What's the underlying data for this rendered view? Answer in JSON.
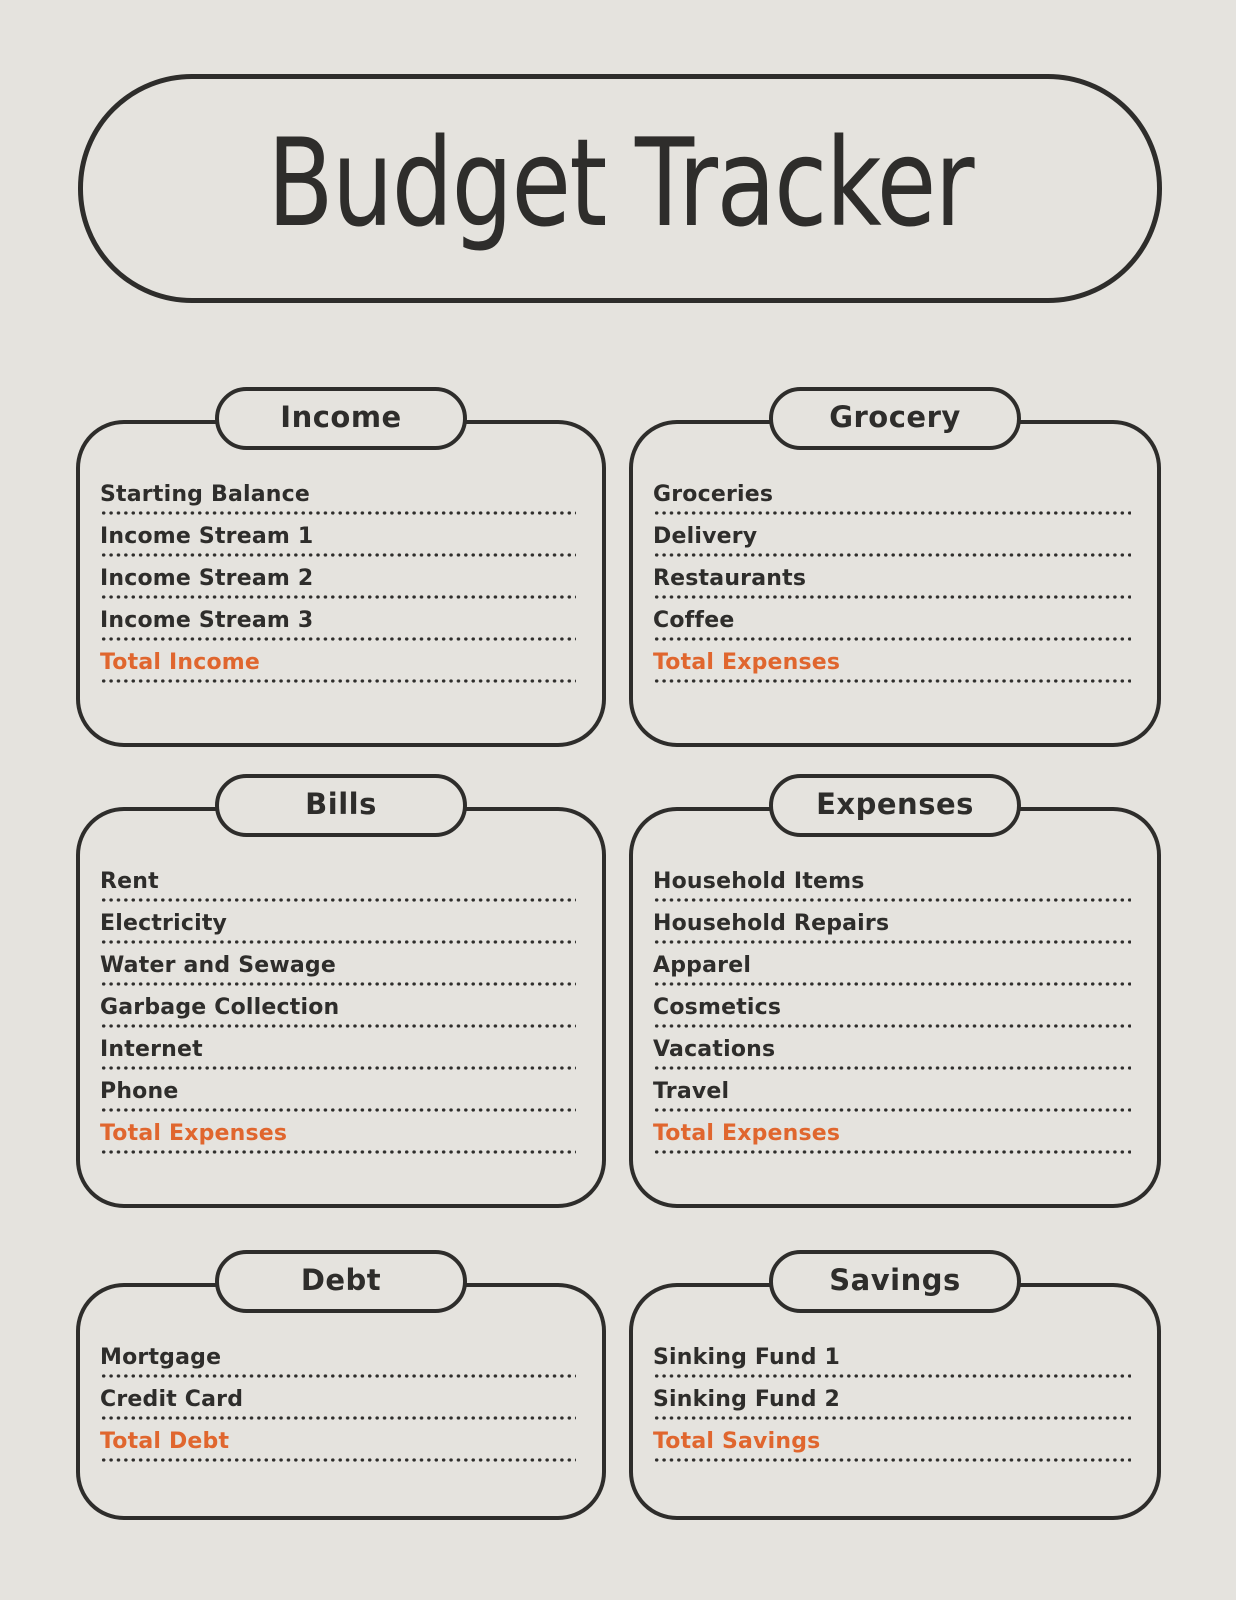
{
  "page": {
    "title": "Budget Tracker"
  },
  "colors": {
    "background": "#E5E3DE",
    "ink": "#2E2D2B",
    "accent": "#E0662E"
  },
  "sections": [
    {
      "id": "income",
      "title": "Income",
      "items": [
        {
          "label": "Starting Balance",
          "value": "",
          "emphasis": false
        },
        {
          "label": "Income Stream 1",
          "value": "",
          "emphasis": false
        },
        {
          "label": "Income Stream 2",
          "value": "",
          "emphasis": false
        },
        {
          "label": "Income Stream 3",
          "value": "",
          "emphasis": false
        },
        {
          "label": "Total Income",
          "value": "",
          "emphasis": true
        }
      ]
    },
    {
      "id": "grocery",
      "title": "Grocery",
      "items": [
        {
          "label": "Groceries",
          "value": "",
          "emphasis": false
        },
        {
          "label": "Delivery",
          "value": "",
          "emphasis": false
        },
        {
          "label": "Restaurants",
          "value": "",
          "emphasis": false
        },
        {
          "label": "Coffee",
          "value": "",
          "emphasis": false
        },
        {
          "label": "Total Expenses",
          "value": "",
          "emphasis": true
        }
      ]
    },
    {
      "id": "bills",
      "title": "Bills",
      "items": [
        {
          "label": "Rent",
          "value": "",
          "emphasis": false
        },
        {
          "label": "Electricity",
          "value": "",
          "emphasis": false
        },
        {
          "label": "Water and Sewage",
          "value": "",
          "emphasis": false
        },
        {
          "label": "Garbage Collection",
          "value": "",
          "emphasis": false
        },
        {
          "label": "Internet",
          "value": "",
          "emphasis": false
        },
        {
          "label": "Phone",
          "value": "",
          "emphasis": false
        },
        {
          "label": "Total Expenses",
          "value": "",
          "emphasis": true
        }
      ]
    },
    {
      "id": "expenses",
      "title": "Expenses",
      "items": [
        {
          "label": "Household Items",
          "value": "",
          "emphasis": false
        },
        {
          "label": "Household Repairs",
          "value": "",
          "emphasis": false
        },
        {
          "label": "Apparel",
          "value": "",
          "emphasis": false
        },
        {
          "label": "Cosmetics",
          "value": "",
          "emphasis": false
        },
        {
          "label": "Vacations",
          "value": "",
          "emphasis": false
        },
        {
          "label": "Travel",
          "value": "",
          "emphasis": false
        },
        {
          "label": "Total Expenses",
          "value": "",
          "emphasis": true
        }
      ]
    },
    {
      "id": "debt",
      "title": "Debt",
      "items": [
        {
          "label": "Mortgage",
          "value": "",
          "emphasis": false
        },
        {
          "label": "Credit Card",
          "value": "",
          "emphasis": false
        },
        {
          "label": "Total Debt",
          "value": "",
          "emphasis": true
        }
      ]
    },
    {
      "id": "savings",
      "title": "Savings",
      "items": [
        {
          "label": "Sinking Fund 1",
          "value": "",
          "emphasis": false
        },
        {
          "label": "Sinking Fund 2",
          "value": "",
          "emphasis": false
        },
        {
          "label": "Total Savings",
          "value": "",
          "emphasis": true
        }
      ]
    }
  ]
}
